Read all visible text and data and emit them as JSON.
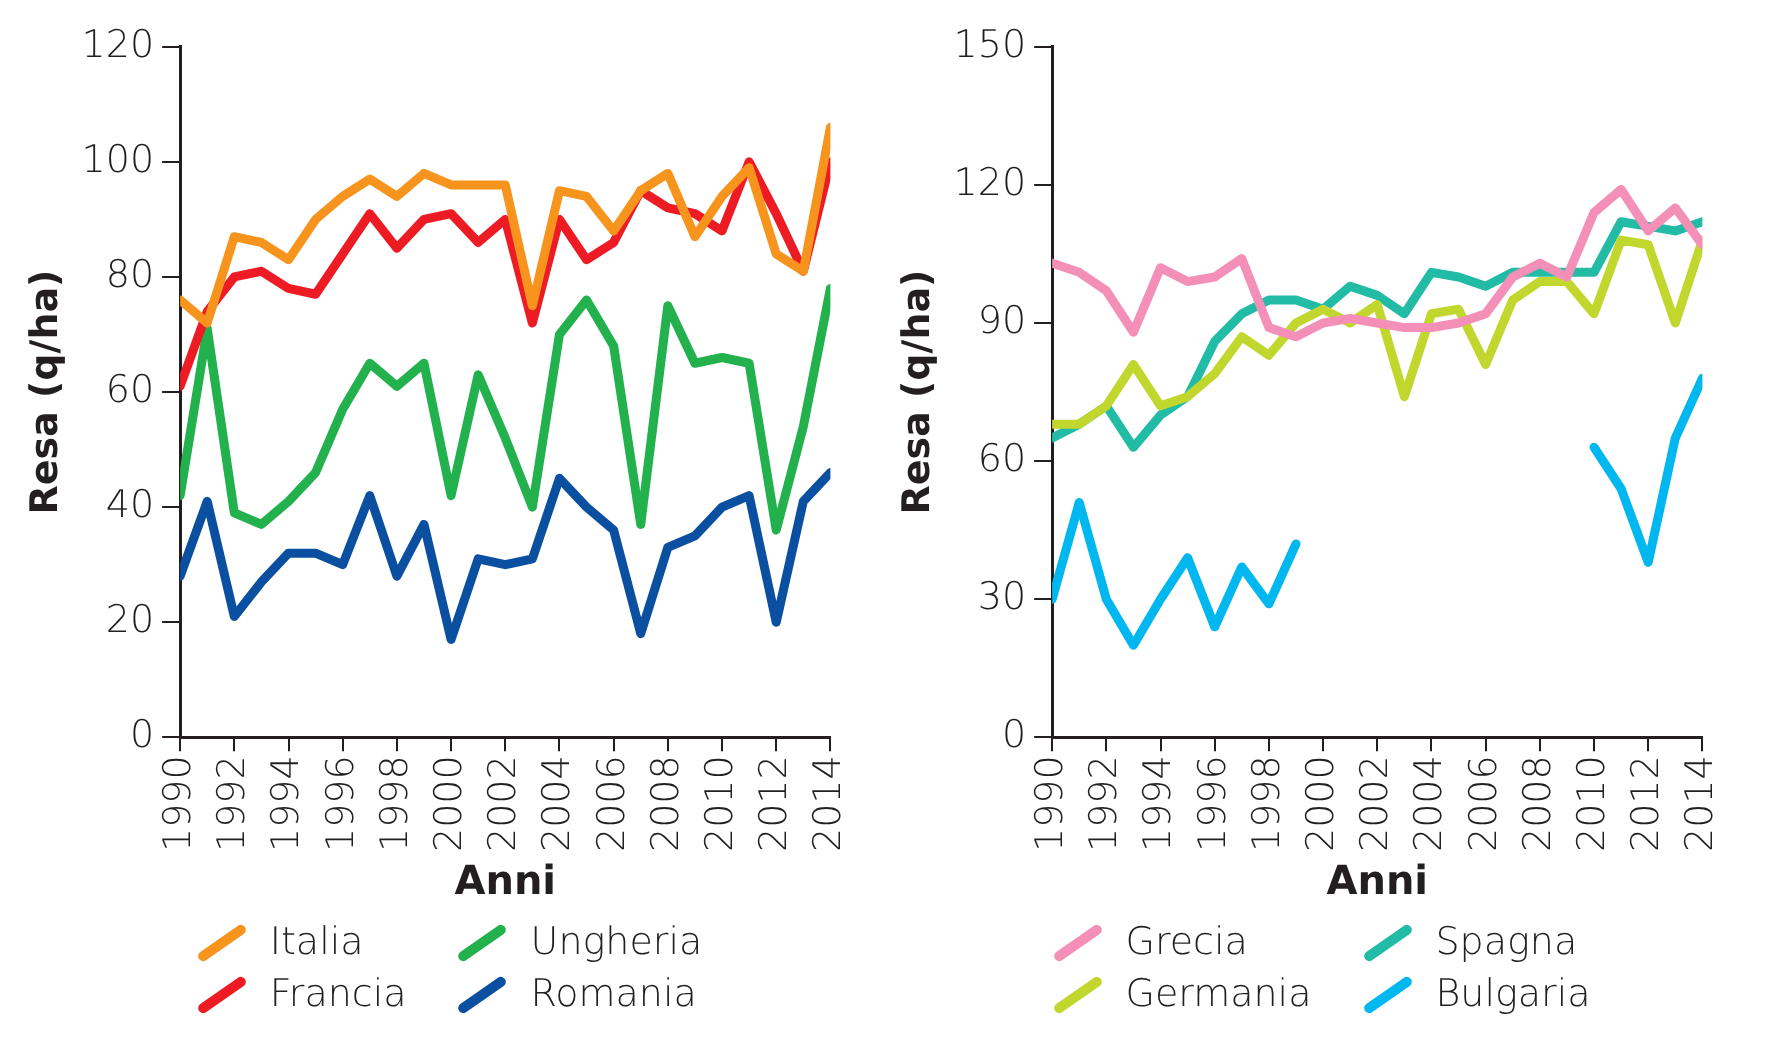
{
  "chart_data": [
    {
      "type": "line",
      "xlabel": "Anni",
      "ylabel": "Resa (q/ha)",
      "x": [
        1990,
        1991,
        1992,
        1993,
        1994,
        1995,
        1996,
        1997,
        1998,
        1999,
        2000,
        2001,
        2002,
        2003,
        2004,
        2005,
        2006,
        2007,
        2008,
        2009,
        2010,
        2011,
        2012,
        2013,
        2014
      ],
      "xlim": [
        1990,
        2014
      ],
      "xticks": [
        1990,
        1992,
        1994,
        1996,
        1998,
        2000,
        2002,
        2004,
        2006,
        2008,
        2010,
        2012,
        2014
      ],
      "ylim": [
        0,
        120
      ],
      "yticks": [
        0,
        20,
        40,
        60,
        80,
        100,
        120
      ],
      "grid": false,
      "legend": "bottom",
      "marker": "none",
      "line_style": "solid",
      "series": [
        {
          "name": "Italia",
          "color": "#f7941d",
          "values": [
            76,
            72,
            87,
            86,
            83,
            90,
            94,
            97,
            94,
            98,
            96,
            96,
            96,
            75,
            95,
            94,
            88,
            95,
            98,
            87,
            94,
            99,
            84,
            81,
            106
          ]
        },
        {
          "name": "Francia",
          "color": "#ed1c24",
          "values": [
            61,
            74,
            80,
            81,
            78,
            77,
            84,
            91,
            85,
            90,
            91,
            86,
            90,
            72,
            90,
            83,
            86,
            95,
            92,
            91,
            88,
            100,
            91,
            81,
            100
          ]
        },
        {
          "name": "Ungheria",
          "color": "#22b14c",
          "values": [
            42,
            71,
            39,
            37,
            41,
            46,
            57,
            65,
            61,
            65,
            42,
            63,
            52,
            40,
            70,
            76,
            68,
            37,
            75,
            65,
            66,
            65,
            36,
            54,
            78
          ]
        },
        {
          "name": "Romania",
          "color": "#0b4fa0",
          "values": [
            28,
            41,
            21,
            27,
            32,
            32,
            30,
            42,
            28,
            37,
            17,
            31,
            30,
            31,
            45,
            40,
            36,
            18,
            33,
            35,
            40,
            42,
            20,
            41,
            46
          ]
        }
      ]
    },
    {
      "type": "line",
      "xlabel": "Anni",
      "ylabel": "Resa (q/ha)",
      "x": [
        1990,
        1991,
        1992,
        1993,
        1994,
        1995,
        1996,
        1997,
        1998,
        1999,
        2000,
        2001,
        2002,
        2003,
        2004,
        2005,
        2006,
        2007,
        2008,
        2009,
        2010,
        2011,
        2012,
        2013,
        2014
      ],
      "xlim": [
        1990,
        2014
      ],
      "xticks": [
        1990,
        1992,
        1994,
        1996,
        1998,
        2000,
        2002,
        2004,
        2006,
        2008,
        2010,
        2012,
        2014
      ],
      "ylim": [
        0,
        150
      ],
      "yticks": [
        0,
        30,
        60,
        90,
        120,
        150
      ],
      "grid": false,
      "legend": "bottom",
      "marker": "none",
      "line_style": "solid",
      "series": [
        {
          "name": "Grecia",
          "color": "#f48fb8",
          "values": [
            103,
            101,
            97,
            88,
            102,
            99,
            100,
            104,
            89,
            87,
            90,
            91,
            90,
            89,
            89,
            90,
            92,
            100,
            103,
            100,
            114,
            119,
            110,
            115,
            107
          ]
        },
        {
          "name": "Germania",
          "color": "#c1d72e",
          "values": [
            68,
            68,
            72,
            81,
            72,
            74,
            79,
            87,
            83,
            90,
            93,
            90,
            94,
            74,
            92,
            93,
            81,
            95,
            99,
            99,
            92,
            108,
            107,
            90,
            108
          ]
        },
        {
          "name": "Spagna",
          "color": "#22bba5",
          "values": [
            65,
            68,
            72,
            63,
            70,
            74,
            86,
            92,
            95,
            95,
            93,
            98,
            96,
            92,
            101,
            100,
            98,
            101,
            101,
            101,
            101,
            112,
            111,
            110,
            112
          ]
        },
        {
          "name": "Bulgaria",
          "color": "#00b8ef",
          "values": [
            30,
            51,
            30,
            20,
            30,
            39,
            24,
            37,
            29,
            42,
            null,
            null,
            null,
            null,
            null,
            null,
            null,
            null,
            null,
            null,
            63,
            54,
            38,
            65,
            78
          ]
        }
      ]
    }
  ]
}
